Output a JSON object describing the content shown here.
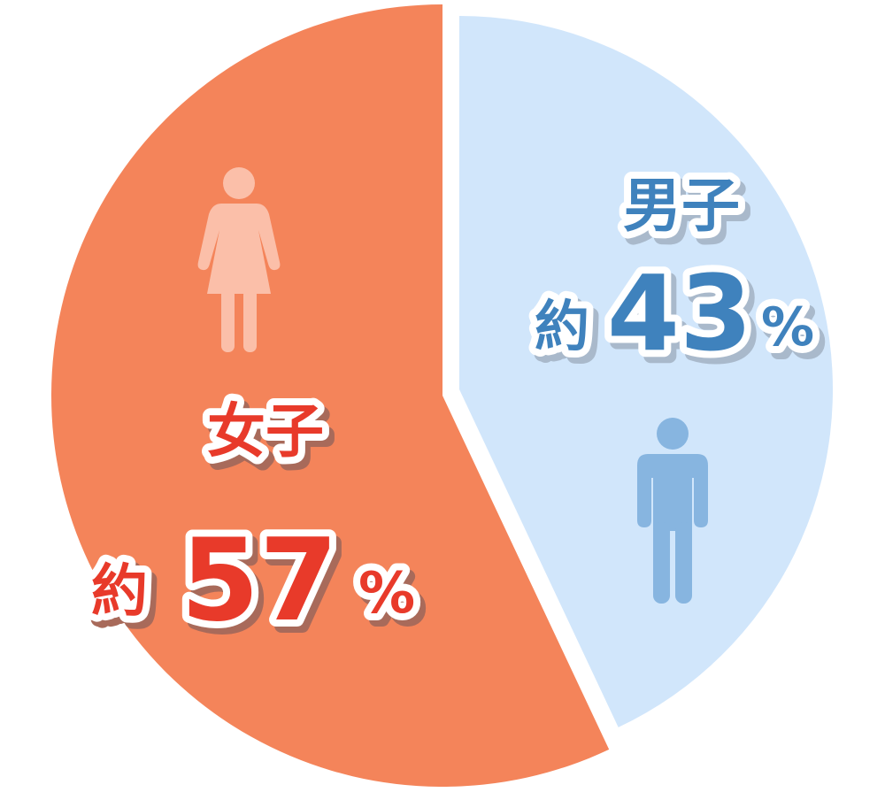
{
  "chart_data": {
    "type": "pie",
    "slices": [
      {
        "label": "男子",
        "prefix": "約",
        "value": 43,
        "unit": "%",
        "color": "#d1e6fb",
        "text_color": "#3f82bd",
        "icon": "male-person-icon",
        "icon_color": "#87b5e0",
        "exploded": true
      },
      {
        "label": "女子",
        "prefix": "約",
        "value": 57,
        "unit": "%",
        "color": "#f4845a",
        "text_color": "#e83a2a",
        "icon": "female-person-icon",
        "icon_color": "#fbbfa9",
        "exploded": false
      }
    ]
  }
}
